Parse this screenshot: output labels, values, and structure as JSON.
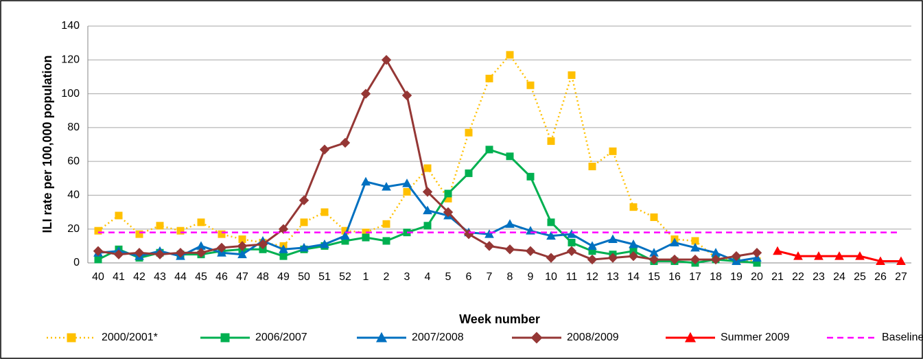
{
  "chart_data": {
    "type": "line",
    "y_label": "ILI rate per 100,000 population",
    "x_label": "Week number",
    "categories": [
      "40",
      "41",
      "42",
      "43",
      "44",
      "45",
      "46",
      "47",
      "48",
      "49",
      "50",
      "51",
      "52",
      "1",
      "2",
      "3",
      "4",
      "5",
      "6",
      "7",
      "8",
      "9",
      "10",
      "11",
      "12",
      "13",
      "14",
      "15",
      "16",
      "17",
      "18",
      "19",
      "20",
      "21",
      "22",
      "23",
      "24",
      "25",
      "26",
      "27"
    ],
    "ylim": [
      0,
      140
    ],
    "yticks": [
      0,
      20,
      40,
      60,
      80,
      100,
      120,
      140
    ],
    "grid": true,
    "legend": "bottom",
    "series": [
      {
        "name": "2000/2001*",
        "color": "#ffc000",
        "marker": "square",
        "line_style": "dotted",
        "values": [
          19,
          28,
          17,
          22,
          19,
          24,
          17,
          14,
          12,
          10,
          24,
          30,
          19,
          18,
          23,
          42,
          56,
          38,
          77,
          109,
          123,
          105,
          72,
          111,
          57,
          66,
          33,
          27,
          14,
          13,
          3,
          2,
          1,
          null,
          null,
          null,
          null,
          null,
          null,
          null
        ]
      },
      {
        "name": "2006/2007",
        "color": "#00b050",
        "marker": "square",
        "line_style": "solid",
        "values": [
          2,
          8,
          3,
          6,
          5,
          5,
          7,
          8,
          8,
          4,
          8,
          10,
          13,
          15,
          13,
          18,
          22,
          41,
          53,
          67,
          63,
          51,
          24,
          12,
          7,
          5,
          7,
          1,
          1,
          0,
          2,
          1,
          0,
          null,
          null,
          null,
          null,
          null,
          null,
          null
        ]
      },
      {
        "name": "2007/2008",
        "color": "#0070c0",
        "marker": "triangle",
        "line_style": "solid",
        "values": [
          6,
          7,
          4,
          7,
          4,
          10,
          6,
          5,
          13,
          8,
          9,
          11,
          16,
          48,
          45,
          47,
          31,
          28,
          18,
          17,
          23,
          19,
          16,
          17,
          10,
          14,
          11,
          6,
          12,
          9,
          6,
          1,
          3,
          null,
          null,
          null,
          null,
          null,
          null,
          null
        ]
      },
      {
        "name": "2008/2009",
        "color": "#953735",
        "marker": "diamond",
        "line_style": "solid",
        "values": [
          7,
          5,
          6,
          5,
          6,
          6,
          9,
          10,
          11,
          20,
          37,
          67,
          71,
          100,
          120,
          99,
          42,
          30,
          17,
          10,
          8,
          7,
          3,
          7,
          2,
          3,
          4,
          2,
          2,
          2,
          2,
          4,
          6,
          null,
          null,
          null,
          null,
          null,
          null,
          null
        ]
      },
      {
        "name": "Summer 2009",
        "color": "#ff0000",
        "marker": "triangle",
        "line_style": "solid",
        "values": [
          null,
          null,
          null,
          null,
          null,
          null,
          null,
          null,
          null,
          null,
          null,
          null,
          null,
          null,
          null,
          null,
          null,
          null,
          null,
          null,
          null,
          null,
          null,
          null,
          null,
          null,
          null,
          null,
          null,
          null,
          null,
          null,
          null,
          7,
          4,
          4,
          4,
          4,
          1,
          1
        ]
      },
      {
        "name": "Baseline",
        "color": "#ff00ff",
        "marker": "none",
        "line_style": "dashed",
        "values": [
          18,
          18,
          18,
          18,
          18,
          18,
          18,
          18,
          18,
          18,
          18,
          18,
          18,
          18,
          18,
          18,
          18,
          18,
          18,
          18,
          18,
          18,
          18,
          18,
          18,
          18,
          18,
          18,
          18,
          18,
          18,
          18,
          18,
          18,
          18,
          18,
          18,
          18,
          18,
          18
        ]
      }
    ]
  }
}
